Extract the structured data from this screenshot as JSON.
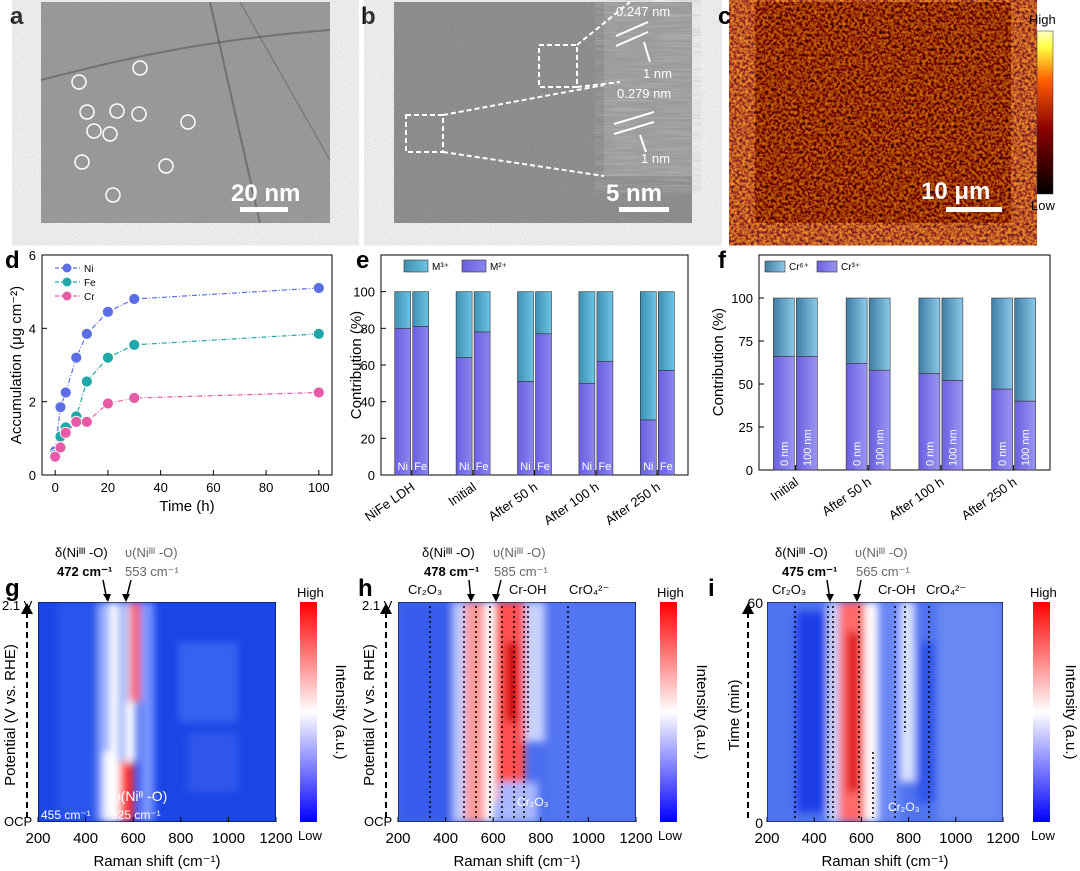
{
  "panels": {
    "a": {
      "label": "a",
      "scale": "20 nm"
    },
    "b": {
      "label": "b",
      "scale": "5 nm",
      "inset_top": "0.247 nm",
      "inset_top_sub": "1 nm",
      "inset_bottom": "0.279 nm",
      "inset_bottom_sub": "1 nm"
    },
    "c": {
      "label": "c",
      "scale": "10 μm",
      "cbar_high": "High",
      "cbar_low": "Low"
    },
    "d": {
      "label": "d",
      "xlabel": "Time (h)",
      "ylabel": "Accumulation (μg cm⁻²)"
    },
    "e": {
      "label": "e",
      "ylabel": "Contribution (%)"
    },
    "f": {
      "label": "f",
      "ylabel": "Contribution (%)"
    },
    "g": {
      "label": "g",
      "xlabel": "Raman shift (cm⁻¹)",
      "ylabel": "Potential (V vs. RHE)",
      "top_tick": "2.1 V",
      "bottom_tick": "OCP",
      "cbar_title": "Intensity (a.u.)",
      "cbar_high": "High",
      "cbar_low": "Low",
      "ann1": "δ(Niᴵᴵᴵ -O)",
      "ann1_val": "472 cm⁻¹",
      "ann2": "υ(Niᴵᴵᴵ -O)",
      "ann2_val": "553 cm⁻¹",
      "ann3": "υ(Niᴵᴵ -O)",
      "ann3_val": "525 cm⁻¹",
      "ann4": "455 cm⁻¹"
    },
    "h": {
      "label": "h",
      "xlabel": "Raman shift (cm⁻¹)",
      "ylabel": "Potential (V vs. RHE)",
      "top_tick": "2.1 V",
      "bottom_tick": "OCP",
      "cbar_title": "Intensity (a.u.)",
      "cbar_high": "High",
      "cbar_low": "Low",
      "ann1": "δ(Niᴵᴵᴵ -O)",
      "ann1_val": "478 cm⁻¹",
      "ann2": "υ(Niᴵᴵᴵ -O)",
      "ann2_val": "585 cm⁻¹",
      "cr2o3": "Cr₂O₃",
      "croh": "Cr-OH",
      "cro4": "CrO₄²⁻",
      "cr2o3_low": "Cr₂O₃"
    },
    "i": {
      "label": "i",
      "xlabel": "Raman shift (cm⁻¹)",
      "ylabel": "Time (min)",
      "cbar_title": "Intensity (a.u.)",
      "cbar_high": "High",
      "cbar_low": "Low",
      "ann1": "δ(Niᴵᴵᴵ -O)",
      "ann1_val": "475 cm⁻¹",
      "ann2": "υ(Niᴵᴵᴵ -O)",
      "ann2_val": "565 cm⁻¹",
      "cr2o3": "Cr₂O₃",
      "croh": "Cr-OH",
      "cro4": "CrO₄²⁻",
      "cr2o3_low": "Cr₂O₃"
    }
  },
  "chart_data": [
    {
      "id": "d",
      "type": "line",
      "xlabel": "Time (h)",
      "ylabel": "Accumulation (μg cm⁻²)",
      "xlim": [
        -5,
        105
      ],
      "ylim": [
        0,
        6
      ],
      "xticks": [
        0,
        20,
        40,
        60,
        80,
        100
      ],
      "yticks": [
        0,
        2,
        4,
        6
      ],
      "series": [
        {
          "name": "Ni",
          "color": "#5b6ee6",
          "x": [
            0,
            2,
            4,
            8,
            12,
            20,
            30,
            100
          ],
          "y": [
            0.65,
            1.85,
            2.25,
            3.2,
            3.85,
            4.45,
            4.8,
            5.1
          ]
        },
        {
          "name": "Fe",
          "color": "#20a8a8",
          "x": [
            0,
            2,
            4,
            8,
            12,
            20,
            30,
            100
          ],
          "y": [
            0.55,
            1.05,
            1.3,
            1.6,
            2.55,
            3.2,
            3.55,
            3.85
          ]
        },
        {
          "name": "Cr",
          "color": "#e65aa8",
          "x": [
            0,
            2,
            4,
            8,
            12,
            20,
            30,
            100
          ],
          "y": [
            0.5,
            0.75,
            1.15,
            1.45,
            1.45,
            1.95,
            2.1,
            2.25
          ]
        }
      ]
    },
    {
      "id": "e",
      "type": "bar",
      "ylabel": "Contribution (%)",
      "ylim": [
        0,
        120
      ],
      "yticks": [
        0,
        20,
        40,
        60,
        80,
        100
      ],
      "legend": [
        "M³⁺",
        "M²⁺"
      ],
      "groups": [
        "NiFe LDH",
        "Initial",
        "After 50 h",
        "After 100 h",
        "After 250 h"
      ],
      "bar_labels": [
        "Ni",
        "Fe"
      ],
      "m2_values": [
        [
          80,
          81
        ],
        [
          64,
          78
        ],
        [
          51,
          77
        ],
        [
          50,
          62
        ],
        [
          30,
          57
        ]
      ]
    },
    {
      "id": "f",
      "type": "bar",
      "ylabel": "Contribution (%)",
      "ylim": [
        0,
        125
      ],
      "yticks": [
        0,
        25,
        50,
        75,
        100
      ],
      "legend": [
        "Cr⁶⁺",
        "Cr³⁺"
      ],
      "groups": [
        "Initial",
        "After 50 h",
        "After 100 h",
        "After 250 h"
      ],
      "bar_labels": [
        "0 nm",
        "100 nm"
      ],
      "cr3_values": [
        [
          66,
          66
        ],
        [
          62,
          58
        ],
        [
          56,
          52
        ],
        [
          47,
          40
        ]
      ]
    },
    {
      "id": "g",
      "type": "heatmap",
      "xlabel": "Raman shift (cm⁻¹)",
      "xlim": [
        200,
        1200
      ],
      "xticks": [
        200,
        400,
        600,
        800,
        1000,
        1200
      ]
    },
    {
      "id": "h",
      "type": "heatmap",
      "xlabel": "Raman shift (cm⁻¹)",
      "xlim": [
        200,
        1200
      ],
      "xticks": [
        200,
        400,
        600,
        800,
        1000,
        1200
      ]
    },
    {
      "id": "i",
      "type": "heatmap",
      "xlabel": "Raman shift (cm⁻¹)",
      "ylabel": "Time (min)",
      "xlim": [
        200,
        1200
      ],
      "ylim": [
        0,
        60
      ],
      "xticks": [
        200,
        400,
        600,
        800,
        1000,
        1200
      ],
      "yticks": [
        0,
        60
      ]
    }
  ]
}
